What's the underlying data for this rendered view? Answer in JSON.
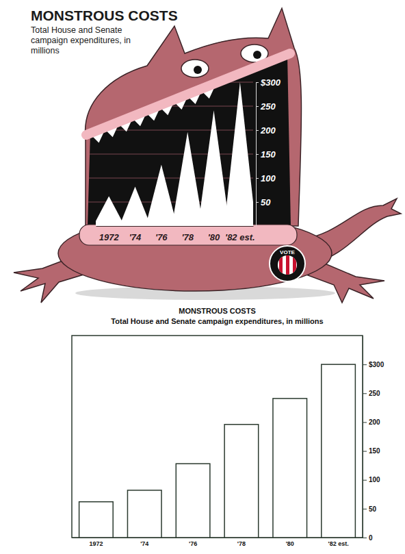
{
  "chart_data": [
    {
      "type": "triangle",
      "title": "MONSTROUS COSTS",
      "subtitle": "Total House and Senate campaign expenditures, in millions",
      "categories": [
        "1972",
        "'74",
        "'76",
        "'78",
        "'80",
        "'82 est."
      ],
      "values": [
        62,
        82,
        128,
        196,
        241,
        300
      ],
      "color": "#ffffff",
      "ylim": [
        0,
        300
      ],
      "yticks": [
        50,
        100,
        150,
        200,
        250,
        {
          "value": 300,
          "label": "$300"
        }
      ],
      "grid": true,
      "annotations": [
        "VOTE"
      ]
    },
    {
      "type": "bar",
      "title": "MONSTROUS COSTS",
      "subtitle": "Total House and Senate campaign expenditures, in millions",
      "categories": [
        "1972",
        "'74",
        "'76",
        "'78",
        "'80",
        "'82 est."
      ],
      "values": [
        62,
        82,
        128,
        196,
        241,
        300
      ],
      "color": "#ffffff",
      "ylim": [
        0,
        350
      ],
      "yticks": [
        0,
        50,
        100,
        150,
        200,
        250,
        {
          "value": 300,
          "label": "$300"
        }
      ],
      "grid": false
    }
  ]
}
